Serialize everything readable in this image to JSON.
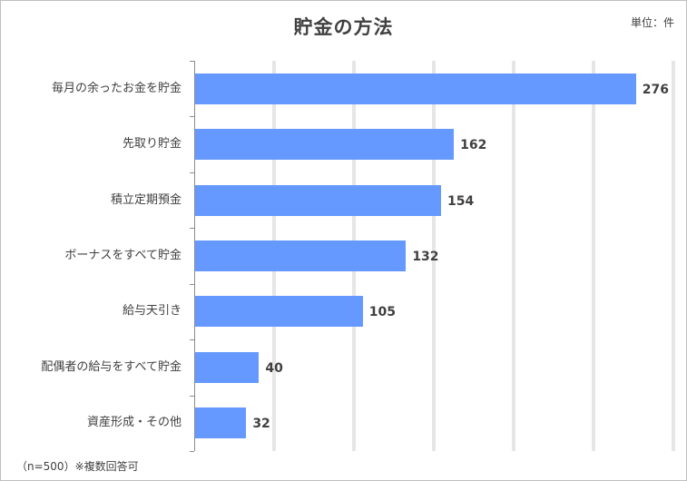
{
  "chart_data": {
    "type": "bar",
    "orientation": "horizontal",
    "title": "貯金の方法",
    "unit_label": "単位：件",
    "categories": [
      "毎月の余ったお金を貯金",
      "先取り貯金",
      "積立定期預金",
      "ボーナスをすべて貯金",
      "給与天引き",
      "配偶者の給与をすべて貯金",
      "資産形成・その他"
    ],
    "values": [
      276,
      162,
      154,
      132,
      105,
      40,
      32
    ],
    "xlabel": "",
    "ylabel": "",
    "xlim": [
      0,
      300
    ],
    "grid": true,
    "gridline_step": 50,
    "legend": "none",
    "bar_color": "#6699FF",
    "data_labels": true
  },
  "footnote": "（n=500）※複数回答可"
}
